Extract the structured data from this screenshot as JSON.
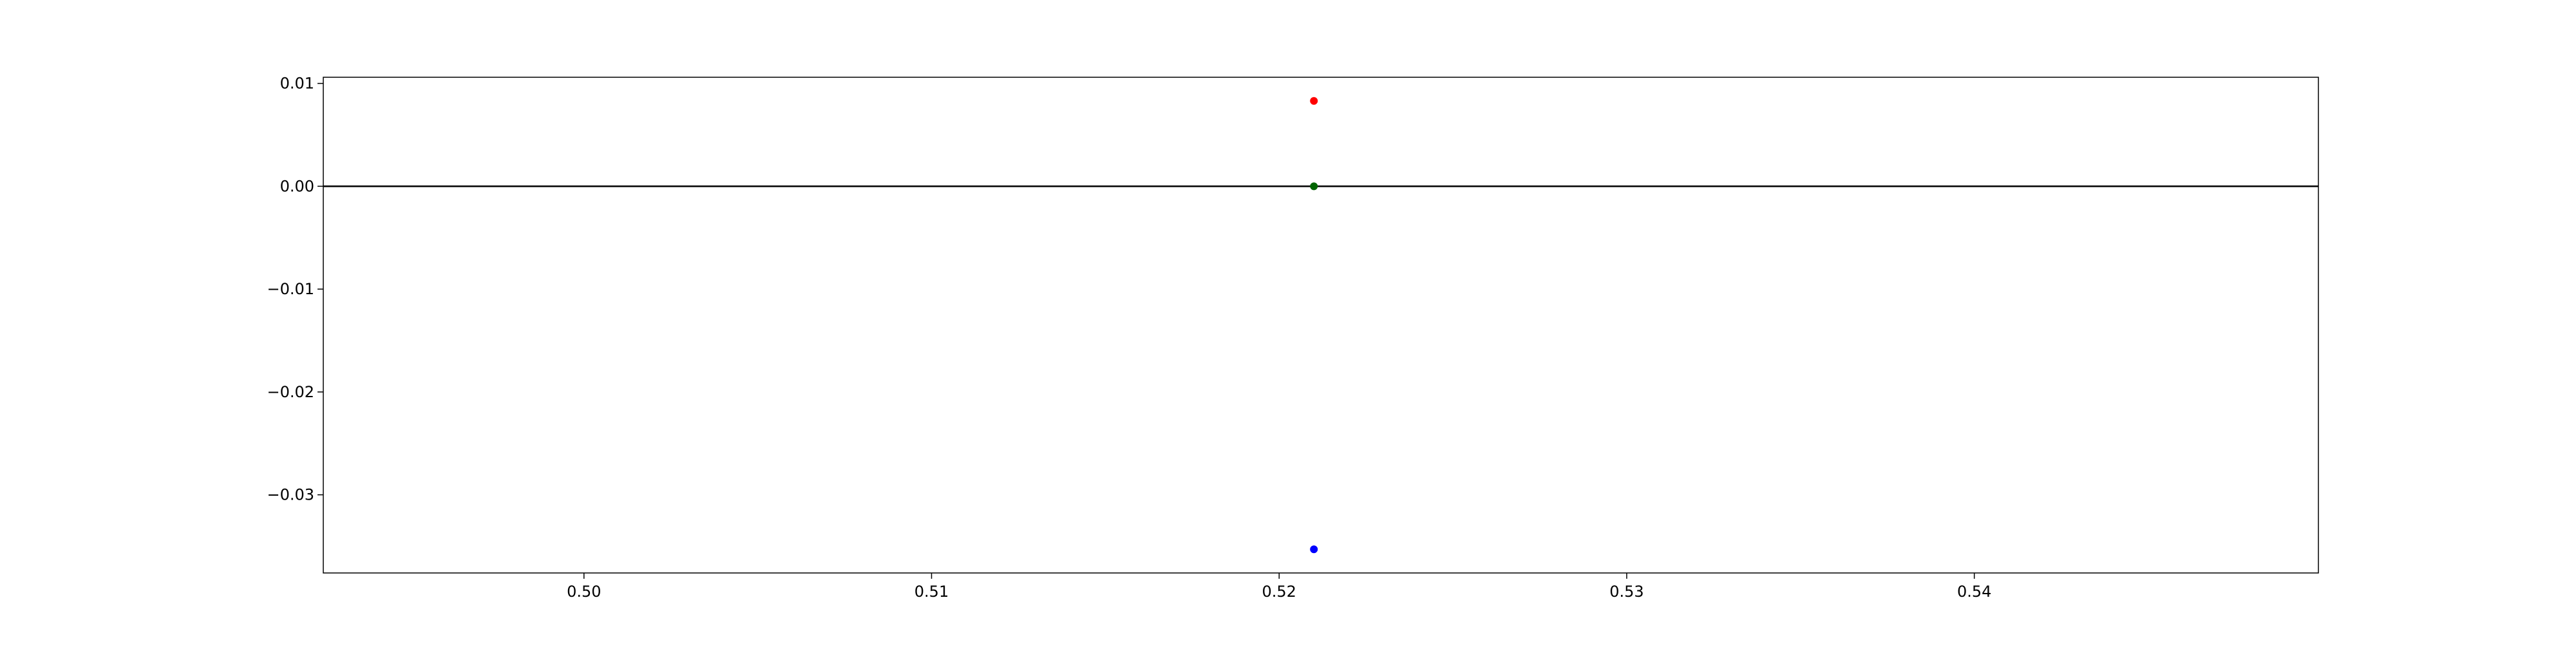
{
  "chart_data": {
    "type": "scatter",
    "title": "",
    "xlabel": "",
    "ylabel": "",
    "xlim": [
      0.4925,
      0.5499
    ],
    "ylim": [
      -0.0376,
      0.0106
    ],
    "x_ticks": [
      0.5,
      0.51,
      0.52,
      0.53,
      0.54
    ],
    "x_tick_labels": [
      "0.50",
      "0.51",
      "0.52",
      "0.53",
      "0.54"
    ],
    "y_ticks": [
      0.01,
      0.0,
      -0.01,
      -0.02,
      -0.03
    ],
    "y_tick_labels": [
      "0.01",
      "0.00",
      "−0.01",
      "−0.02",
      "−0.03"
    ],
    "grid": false,
    "legend": "none",
    "horizontal_line": {
      "y": 0.0,
      "color": "#000000"
    },
    "series": [
      {
        "color": "#ff0000",
        "points": [
          {
            "x": 0.521,
            "y": 0.0083
          }
        ]
      },
      {
        "color": "#006400",
        "points": [
          {
            "x": 0.521,
            "y": 0.0
          }
        ]
      },
      {
        "color": "#0000ff",
        "points": [
          {
            "x": 0.521,
            "y": -0.0353
          }
        ]
      }
    ]
  }
}
